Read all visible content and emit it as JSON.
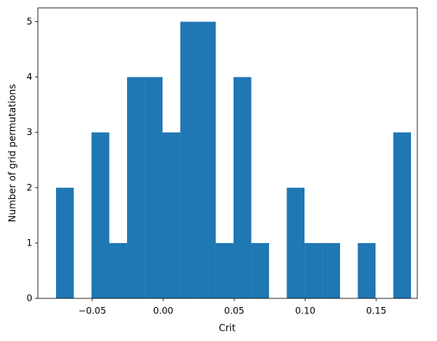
{
  "chart_data": {
    "type": "histogram",
    "bins": [
      -0.0755,
      -0.063,
      -0.0505,
      -0.038,
      -0.0255,
      -0.013,
      -0.0005,
      0.012,
      0.0245,
      0.037,
      0.0495,
      0.062,
      0.0745,
      0.087,
      0.0995,
      0.112,
      0.1245,
      0.137,
      0.1495,
      0.162,
      0.1745
    ],
    "values": [
      2,
      0,
      3,
      1,
      4,
      4,
      3,
      5,
      5,
      1,
      4,
      1,
      0,
      2,
      1,
      1,
      0,
      1,
      0,
      3
    ],
    "color": "#1f77b4",
    "x_label": "Crit",
    "y_label": "Number of grid permutations",
    "xlim": [
      -0.0883,
      0.1789
    ],
    "ylim": [
      0,
      5.25
    ],
    "xticks": [
      {
        "value": -0.05,
        "label": "−0.05"
      },
      {
        "value": 0,
        "label": "0.00"
      },
      {
        "value": 0.05,
        "label": "0.05"
      },
      {
        "value": 0.1,
        "label": "0.10"
      },
      {
        "value": 0.15,
        "label": "0.15"
      }
    ],
    "yticks": [
      0,
      1,
      2,
      3,
      4,
      5
    ]
  }
}
